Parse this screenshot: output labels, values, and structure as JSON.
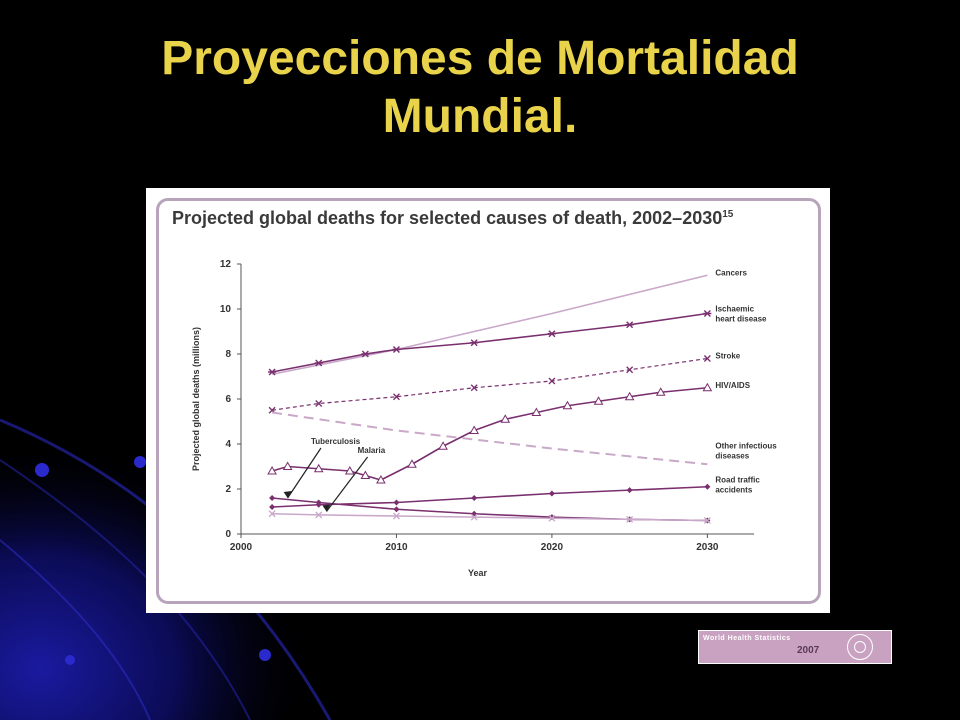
{
  "slide": {
    "title_line1": "Proyecciones de Mortalidad",
    "title_line2": "Mundial."
  },
  "figure": {
    "title": "Projected global deaths for selected causes of death, 2002–2030",
    "footnote": "15"
  },
  "badge": {
    "line1": "World Health Statistics",
    "line2": "2007"
  },
  "colors": {
    "background": "#000000",
    "title": "#e8d34a",
    "series_dark": "#7a2f6e",
    "series_light": "#c9a8c9",
    "frame": "#b7a4bb"
  },
  "chart_data": {
    "type": "line",
    "title": "Projected global deaths for selected causes of death, 2002–2030",
    "xlabel": "Year",
    "ylabel": "Projected global deaths (millions)",
    "xlim": [
      2000,
      2033
    ],
    "ylim": [
      0,
      12
    ],
    "xticks": [
      2000,
      2010,
      2020,
      2030
    ],
    "yticks": [
      0,
      2,
      4,
      6,
      8,
      10,
      12
    ],
    "grid": false,
    "legend": "right-end labels",
    "series": [
      {
        "name": "Cancers",
        "style": "line-light",
        "x": [
          2002,
          2010,
          2020,
          2030
        ],
        "y": [
          7.1,
          8.2,
          9.8,
          11.5
        ]
      },
      {
        "name": "Ischaemic heart disease",
        "style": "star-dark",
        "x": [
          2002,
          2005,
          2008,
          2010,
          2015,
          2020,
          2025,
          2030
        ],
        "y": [
          7.2,
          7.6,
          8.0,
          8.2,
          8.5,
          8.9,
          9.3,
          9.8
        ]
      },
      {
        "name": "Stroke",
        "style": "cross-dashed",
        "x": [
          2002,
          2005,
          2010,
          2015,
          2020,
          2025,
          2030
        ],
        "y": [
          5.5,
          5.8,
          6.1,
          6.5,
          6.8,
          7.3,
          7.8
        ]
      },
      {
        "name": "HIV/AIDS",
        "style": "triangle-dark",
        "x": [
          2002,
          2003,
          2005,
          2007,
          2008,
          2009,
          2011,
          2013,
          2015,
          2017,
          2019,
          2021,
          2023,
          2025,
          2027,
          2030
        ],
        "y": [
          2.8,
          3.0,
          2.9,
          2.8,
          2.6,
          2.4,
          3.1,
          3.9,
          4.6,
          5.1,
          5.4,
          5.7,
          5.9,
          6.1,
          6.3,
          6.5
        ]
      },
      {
        "name": "Other infectious diseases",
        "style": "dashed-light",
        "x": [
          2002,
          2010,
          2020,
          2030
        ],
        "y": [
          5.4,
          4.6,
          3.8,
          3.1
        ]
      },
      {
        "name": "Road traffic accidents",
        "style": "diamond-dark",
        "x": [
          2002,
          2005,
          2010,
          2015,
          2020,
          2025,
          2030
        ],
        "y": [
          1.2,
          1.3,
          1.4,
          1.6,
          1.8,
          1.95,
          2.1
        ]
      },
      {
        "name": "Tuberculosis",
        "style": "diamond-dark",
        "x": [
          2002,
          2005,
          2010,
          2015,
          2020,
          2025,
          2030
        ],
        "y": [
          1.6,
          1.4,
          1.1,
          0.9,
          0.75,
          0.65,
          0.6
        ]
      },
      {
        "name": "Malaria",
        "style": "cross-light",
        "x": [
          2002,
          2005,
          2010,
          2015,
          2020,
          2025,
          2030
        ],
        "y": [
          0.9,
          0.85,
          0.8,
          0.75,
          0.7,
          0.65,
          0.6
        ]
      }
    ],
    "annotations": [
      {
        "text": "Tuberculosis",
        "arrow_to": [
          2003,
          1.6
        ]
      },
      {
        "text": "Malaria",
        "arrow_to": [
          2005.5,
          1.0
        ]
      }
    ],
    "end_labels": [
      {
        "series": "Cancers",
        "lines": [
          "Cancers"
        ]
      },
      {
        "series": "Ischaemic heart disease",
        "lines": [
          "Ischaemic",
          "heart disease"
        ]
      },
      {
        "series": "Stroke",
        "lines": [
          "Stroke"
        ]
      },
      {
        "series": "HIV/AIDS",
        "lines": [
          "HIV/AIDS"
        ]
      },
      {
        "series": "Other infectious diseases",
        "lines": [
          "Other infectious",
          "diseases"
        ]
      },
      {
        "series": "Road traffic accidents",
        "lines": [
          "Road traffic",
          "accidents"
        ]
      }
    ]
  }
}
